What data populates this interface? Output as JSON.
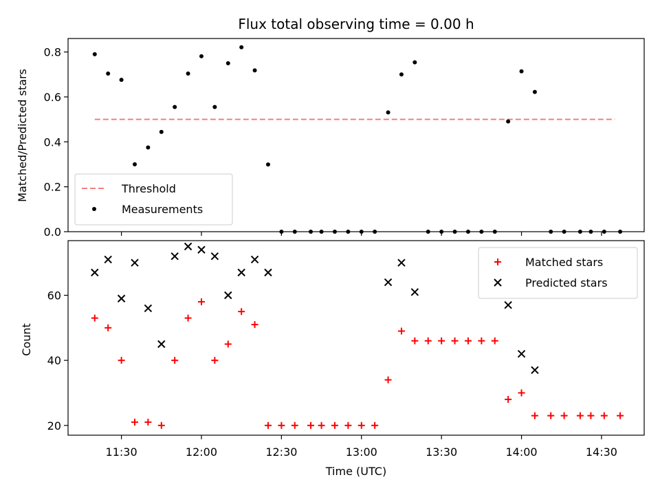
{
  "chart_data": [
    {
      "type": "scatter",
      "title": "Flux total observing time = 0.00 h",
      "xlabel": "",
      "ylabel": "Matched/Predicted stars",
      "xlim": [
        "11:10",
        "14:46"
      ],
      "ylim": [
        0,
        0.86
      ],
      "yticks": [
        0.0,
        0.2,
        0.4,
        0.6,
        0.8
      ],
      "ytick_labels": [
        "0.0",
        "0.2",
        "0.4",
        "0.6",
        "0.8"
      ],
      "xticks": [
        "11:30",
        "12:00",
        "12:30",
        "13:00",
        "13:30",
        "14:00",
        "14:30"
      ],
      "legend_position": "lower-left",
      "threshold": {
        "name": "Threshold",
        "value": 0.5,
        "x_start": "11:20",
        "x_end": "14:35",
        "color": "#f08080",
        "style": "dashed"
      },
      "series": [
        {
          "name": "Measurements",
          "marker": "dot",
          "color": "#000000",
          "points": [
            [
              "11:20",
              0.79
            ],
            [
              "11:25",
              0.704
            ],
            [
              "11:30",
              0.676
            ],
            [
              "11:35",
              0.3
            ],
            [
              "11:40",
              0.375
            ],
            [
              "11:45",
              0.444
            ],
            [
              "11:50",
              0.555
            ],
            [
              "11:55",
              0.704
            ],
            [
              "12:00",
              0.781
            ],
            [
              "12:05",
              0.555
            ],
            [
              "12:10",
              0.75
            ],
            [
              "12:15",
              0.821
            ],
            [
              "12:20",
              0.718
            ],
            [
              "12:25",
              0.299
            ],
            [
              "12:30",
              0.0
            ],
            [
              "12:35",
              0.0
            ],
            [
              "12:41",
              0.0
            ],
            [
              "12:45",
              0.0
            ],
            [
              "12:50",
              0.0
            ],
            [
              "12:55",
              0.0
            ],
            [
              "13:00",
              0.0
            ],
            [
              "13:05",
              0.0
            ],
            [
              "13:10",
              0.531
            ],
            [
              "13:15",
              0.7
            ],
            [
              "13:20",
              0.754
            ],
            [
              "13:25",
              0.0
            ],
            [
              "13:30",
              0.0
            ],
            [
              "13:35",
              0.0
            ],
            [
              "13:40",
              0.0
            ],
            [
              "13:45",
              0.0
            ],
            [
              "13:50",
              0.0
            ],
            [
              "13:55",
              0.491
            ],
            [
              "14:00",
              0.714
            ],
            [
              "14:05",
              0.622
            ],
            [
              "14:11",
              0.0
            ],
            [
              "14:16",
              0.0
            ],
            [
              "14:22",
              0.0
            ],
            [
              "14:26",
              0.0
            ],
            [
              "14:31",
              0.0
            ],
            [
              "14:37",
              0.0
            ]
          ]
        }
      ]
    },
    {
      "type": "scatter",
      "title": "",
      "xlabel": "Time (UTC)",
      "ylabel": "Count",
      "xlim": [
        "11:10",
        "14:46"
      ],
      "ylim": [
        17,
        76.8
      ],
      "yticks": [
        20,
        40,
        60
      ],
      "xticks": [
        "11:30",
        "12:00",
        "12:30",
        "13:00",
        "13:30",
        "14:00",
        "14:30"
      ],
      "legend_position": "top-right",
      "series": [
        {
          "name": "Matched stars",
          "marker": "plus",
          "color": "#ff0000",
          "points": [
            [
              "11:20",
              53
            ],
            [
              "11:25",
              50
            ],
            [
              "11:30",
              40
            ],
            [
              "11:35",
              21
            ],
            [
              "11:40",
              21
            ],
            [
              "11:45",
              20
            ],
            [
              "11:50",
              40
            ],
            [
              "11:55",
              53
            ],
            [
              "12:00",
              58
            ],
            [
              "12:05",
              40
            ],
            [
              "12:10",
              45
            ],
            [
              "12:15",
              55
            ],
            [
              "12:20",
              51
            ],
            [
              "12:25",
              20
            ],
            [
              "12:30",
              20
            ],
            [
              "12:35",
              20
            ],
            [
              "12:41",
              20
            ],
            [
              "12:45",
              20
            ],
            [
              "12:50",
              20
            ],
            [
              "12:55",
              20
            ],
            [
              "13:00",
              20
            ],
            [
              "13:05",
              20
            ],
            [
              "13:10",
              34
            ],
            [
              "13:15",
              49
            ],
            [
              "13:20",
              46
            ],
            [
              "13:25",
              46
            ],
            [
              "13:30",
              46
            ],
            [
              "13:35",
              46
            ],
            [
              "13:40",
              46
            ],
            [
              "13:45",
              46
            ],
            [
              "13:50",
              46
            ],
            [
              "13:55",
              28
            ],
            [
              "14:00",
              30
            ],
            [
              "14:05",
              23
            ],
            [
              "14:11",
              23
            ],
            [
              "14:16",
              23
            ],
            [
              "14:22",
              23
            ],
            [
              "14:26",
              23
            ],
            [
              "14:31",
              23
            ],
            [
              "14:37",
              23
            ]
          ]
        },
        {
          "name": "Predicted stars",
          "marker": "x",
          "color": "#000000",
          "points": [
            [
              "11:20",
              67
            ],
            [
              "11:25",
              71
            ],
            [
              "11:30",
              59
            ],
            [
              "11:35",
              70
            ],
            [
              "11:40",
              56
            ],
            [
              "11:45",
              45
            ],
            [
              "11:50",
              72
            ],
            [
              "11:55",
              75
            ],
            [
              "12:00",
              74
            ],
            [
              "12:05",
              72
            ],
            [
              "12:10",
              60
            ],
            [
              "12:15",
              67
            ],
            [
              "12:20",
              71
            ],
            [
              "12:25",
              67
            ],
            [
              "13:10",
              64
            ],
            [
              "13:15",
              70
            ],
            [
              "13:20",
              61
            ],
            [
              "13:55",
              57
            ],
            [
              "14:00",
              42
            ],
            [
              "14:05",
              37
            ]
          ]
        }
      ]
    }
  ]
}
